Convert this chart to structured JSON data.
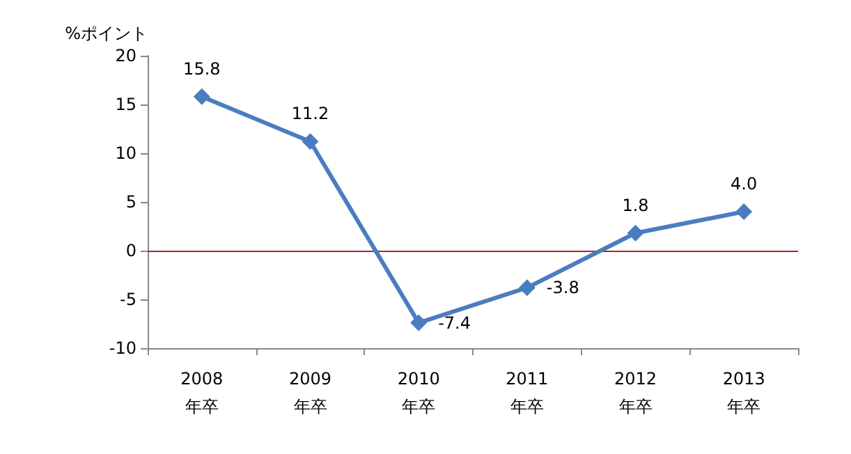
{
  "chart_data": {
    "type": "line",
    "ylabel": "%ポイント",
    "categories": [
      "2008\n年卒",
      "2009\n年卒",
      "2010\n年卒",
      "2011\n年卒",
      "2012\n年卒",
      "2013\n年卒"
    ],
    "series": [
      {
        "color": "#4a7dc0",
        "values": [
          15.8,
          11.2,
          -7.4,
          -3.8,
          1.8,
          4.0
        ],
        "value_labels": [
          "15.8",
          "11.2",
          "-7.4",
          "-3.8",
          "1.8",
          "4.0"
        ]
      }
    ],
    "ylim": [
      -10,
      20
    ],
    "yticks": [
      -10,
      -5,
      0,
      5,
      10,
      15,
      20
    ],
    "ref_lines": [
      {
        "axis": "y",
        "value": 0,
        "color": "#b22222"
      }
    ],
    "grid": false,
    "marker": "diamond",
    "line_style": "solid"
  }
}
